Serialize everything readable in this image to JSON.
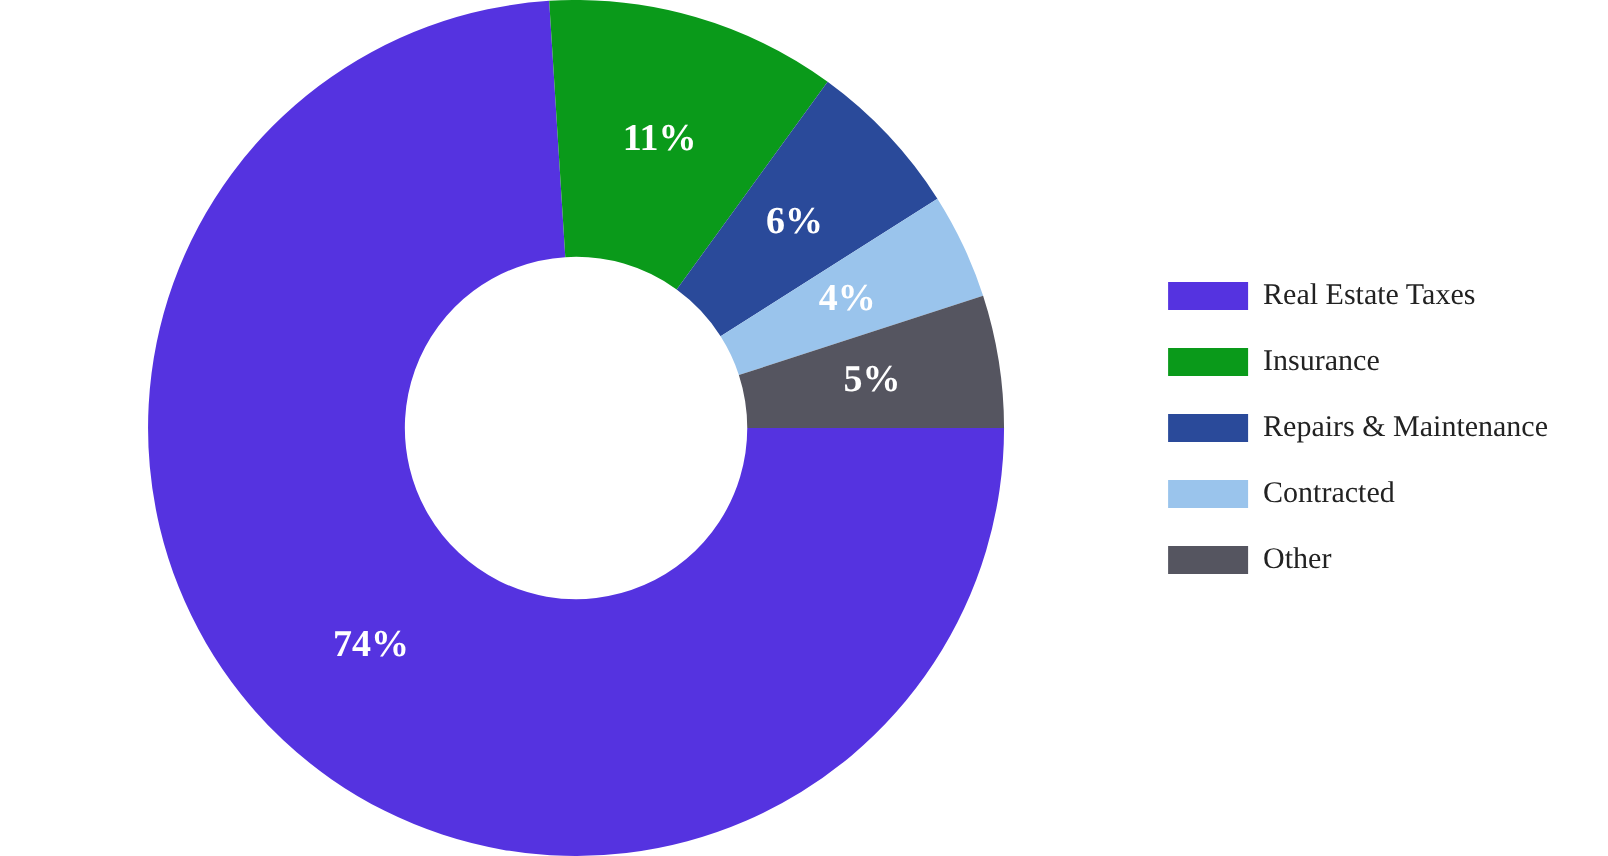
{
  "chart_data": {
    "type": "donut",
    "categories": [
      "Real Estate Taxes",
      "Insurance",
      "Repairs & Maintenance",
      "Contracted",
      "Other"
    ],
    "values": [
      74,
      11,
      6,
      4,
      5
    ],
    "colors": [
      "#5533e0",
      "#0a9a1a",
      "#2a4a9a",
      "#9ac4ec",
      "#555560"
    ],
    "value_labels": [
      "74%",
      "11%",
      "6%",
      "4%",
      "5%"
    ],
    "legend": "right"
  }
}
